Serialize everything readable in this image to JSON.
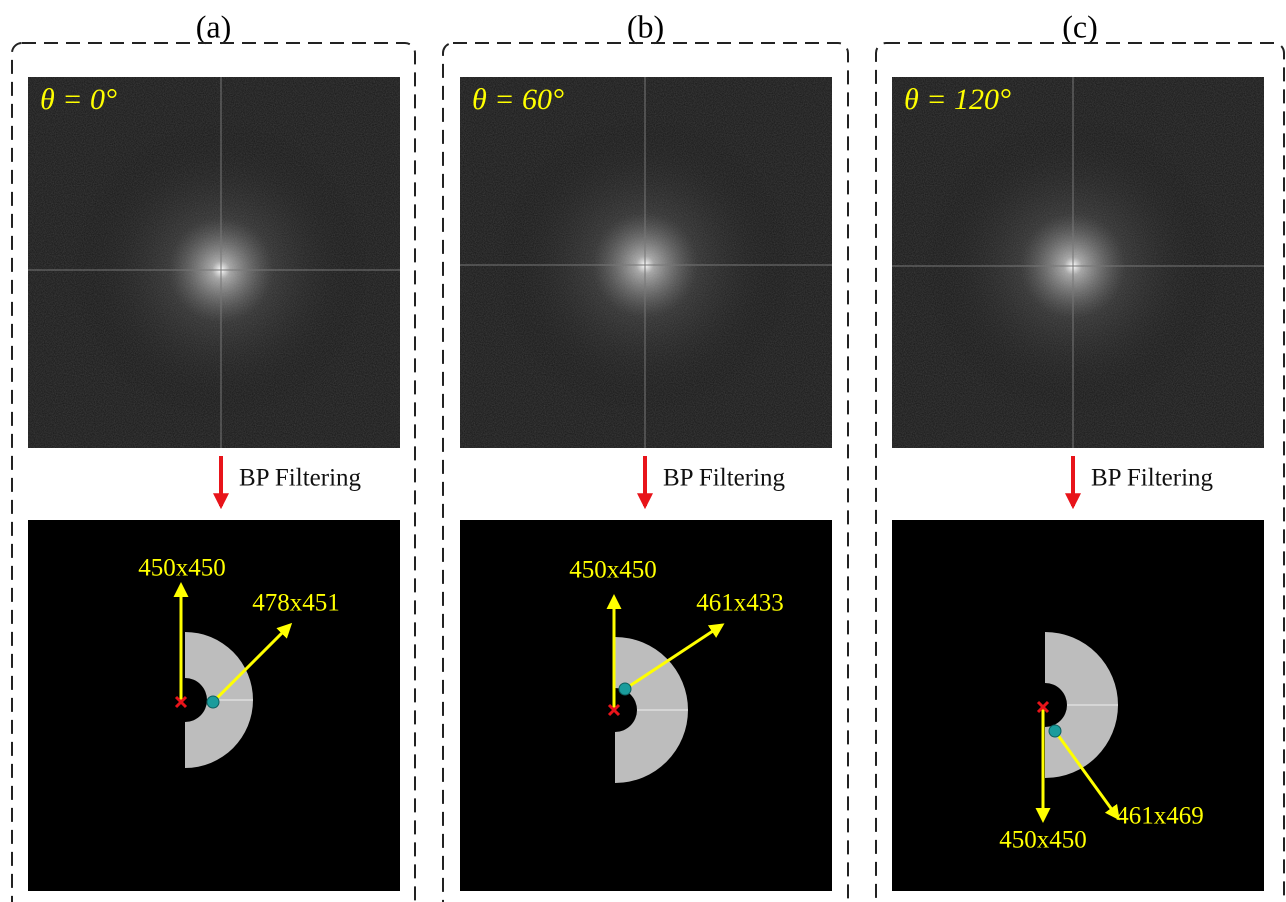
{
  "panels": [
    {
      "label": "(a)",
      "angle": "θ = 0°",
      "step": "BP Filtering",
      "center": "450x450",
      "peak": "478x451"
    },
    {
      "label": "(b)",
      "angle": "θ = 60°",
      "step": "BP Filtering",
      "center": "450x450",
      "peak": "461x433"
    },
    {
      "label": "(c)",
      "angle": "θ = 120°",
      "step": "BP Filtering",
      "center": "450x450",
      "peak": "461x469"
    }
  ]
}
